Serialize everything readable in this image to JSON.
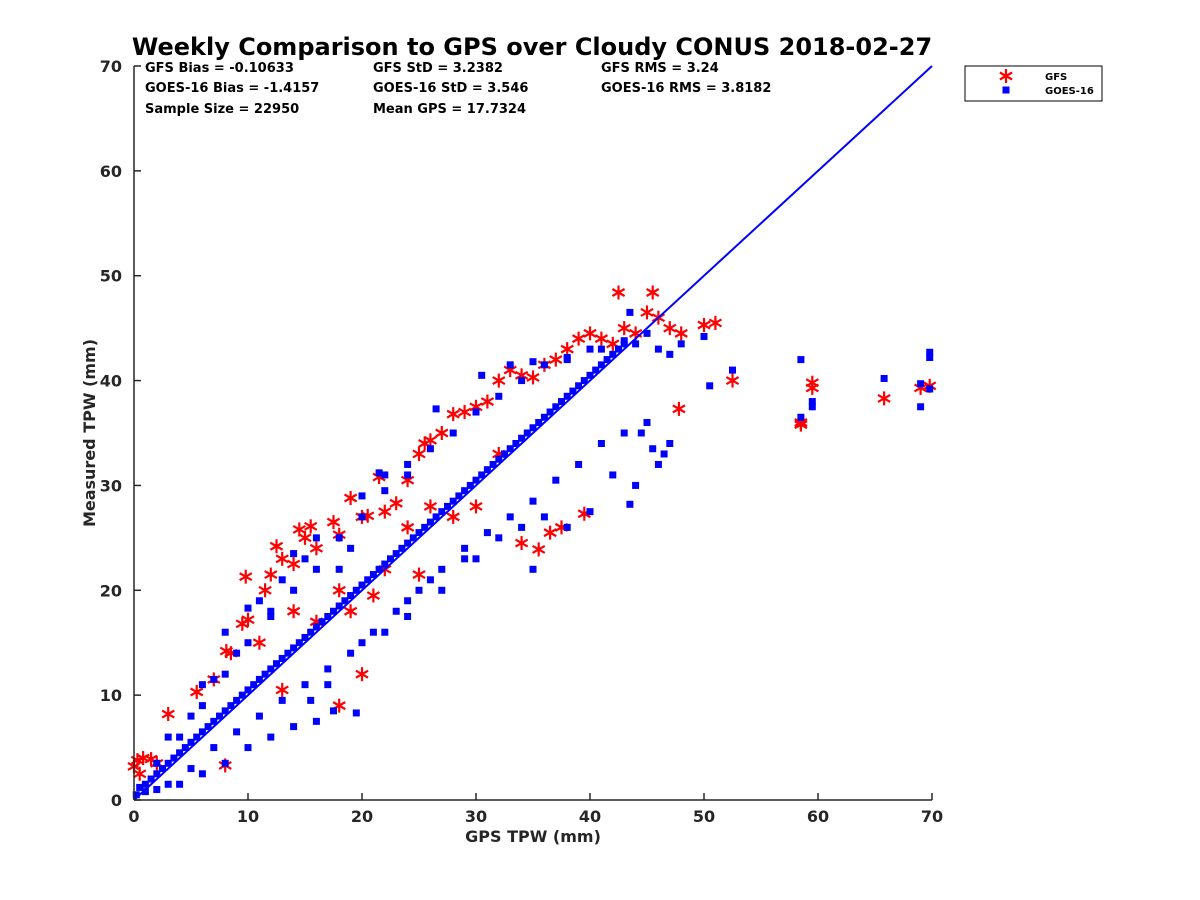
{
  "chart_data": {
    "type": "scatter",
    "title": "Weekly Comparison to GPS over Cloudy CONUS 2018-02-27",
    "xlabel": "GPS TPW (mm)",
    "ylabel": "Measured TPW (mm)",
    "xlim": [
      0,
      70
    ],
    "ylim": [
      0,
      70
    ],
    "xticks": [
      "0",
      "10",
      "20",
      "30",
      "40",
      "50",
      "60",
      "70"
    ],
    "yticks": [
      "0",
      "10",
      "20",
      "30",
      "40",
      "50",
      "60",
      "70"
    ],
    "grid": false,
    "legend_position": "outside-top-right",
    "stats": [
      [
        "GFS Bias = -0.10633",
        "GFS StD = 3.2382",
        "GFS RMS = 3.24"
      ],
      [
        "GOES-16 Bias = -1.4157",
        "GOES-16 StD = 3.546",
        "GOES-16 RMS = 3.8182"
      ],
      [
        "Sample Size = 22950",
        "Mean GPS = 17.7324"
      ]
    ],
    "reference_line": {
      "x": [
        0,
        70
      ],
      "y": [
        0,
        70
      ],
      "color": "#0000ff"
    },
    "series": [
      {
        "name": "GFS",
        "marker": "asterisk",
        "color": "#ff0000",
        "points": [
          [
            0,
            3.2
          ],
          [
            0.3,
            3.8
          ],
          [
            0.8,
            4
          ],
          [
            1.5,
            3.9
          ],
          [
            2,
            3.5
          ],
          [
            0.5,
            2.5
          ],
          [
            3,
            8.2
          ],
          [
            5.5,
            10.3
          ],
          [
            7,
            11.5
          ],
          [
            8.1,
            14.2
          ],
          [
            9.5,
            16.8
          ],
          [
            9.8,
            21.3
          ],
          [
            10,
            17.2
          ],
          [
            11.5,
            20
          ],
          [
            12,
            21.5
          ],
          [
            12.5,
            24.2
          ],
          [
            13,
            23
          ],
          [
            14,
            22.5
          ],
          [
            14.5,
            25.8
          ],
          [
            15,
            25
          ],
          [
            15.5,
            26.1
          ],
          [
            16,
            24
          ],
          [
            17.5,
            26.5
          ],
          [
            18,
            25.3
          ],
          [
            19,
            28.8
          ],
          [
            20,
            27
          ],
          [
            20.5,
            27.1
          ],
          [
            21.5,
            30.8
          ],
          [
            22,
            27.5
          ],
          [
            23,
            28.3
          ],
          [
            24,
            30.5
          ],
          [
            25,
            33
          ],
          [
            25.5,
            34
          ],
          [
            26,
            34.3
          ],
          [
            27,
            35
          ],
          [
            28,
            36.8
          ],
          [
            29,
            37
          ],
          [
            30,
            37.5
          ],
          [
            31,
            38
          ],
          [
            32,
            40
          ],
          [
            33,
            41
          ],
          [
            34,
            40.5
          ],
          [
            35,
            40.3
          ],
          [
            36,
            41.5
          ],
          [
            37,
            42
          ],
          [
            38,
            43
          ],
          [
            39,
            44
          ],
          [
            40,
            44.5
          ],
          [
            41,
            44
          ],
          [
            42,
            43.5
          ],
          [
            43,
            45
          ],
          [
            44,
            44.5
          ],
          [
            45,
            46.5
          ],
          [
            46,
            46
          ],
          [
            47,
            45
          ],
          [
            48,
            44.5
          ],
          [
            42.5,
            48.4
          ],
          [
            45.5,
            48.4
          ],
          [
            47.8,
            37.3
          ],
          [
            50,
            45.3
          ],
          [
            51,
            45.5
          ],
          [
            52.5,
            40
          ],
          [
            58.5,
            36
          ],
          [
            58.5,
            35.8
          ],
          [
            59.5,
            39.8
          ],
          [
            59.5,
            39.3
          ],
          [
            65.8,
            38.3
          ],
          [
            69,
            39.3
          ],
          [
            69.8,
            39.5
          ],
          [
            35.5,
            23.9
          ],
          [
            36.5,
            25.5
          ],
          [
            37.5,
            26
          ],
          [
            39.5,
            27.3
          ],
          [
            34,
            24.5
          ],
          [
            25,
            21.5
          ],
          [
            21,
            19.5
          ],
          [
            19,
            18
          ],
          [
            13,
            10.5
          ],
          [
            18,
            9
          ],
          [
            20,
            12
          ],
          [
            8,
            3.3
          ],
          [
            8.5,
            14
          ],
          [
            11,
            15
          ],
          [
            14,
            18
          ],
          [
            28,
            27
          ],
          [
            30,
            28
          ],
          [
            32,
            33
          ],
          [
            24,
            26
          ],
          [
            22,
            22
          ],
          [
            26,
            28
          ],
          [
            18,
            20
          ],
          [
            16,
            17
          ]
        ]
      },
      {
        "name": "GOES-16",
        "marker": "square",
        "color": "#0000ff",
        "points": [
          [
            0.2,
            0.5
          ],
          [
            0.5,
            1.2
          ],
          [
            1,
            1.5
          ],
          [
            1.5,
            2
          ],
          [
            2,
            2.5
          ],
          [
            2.5,
            3
          ],
          [
            3,
            3.5
          ],
          [
            3.5,
            4
          ],
          [
            4,
            4.5
          ],
          [
            4.5,
            5
          ],
          [
            5,
            5.5
          ],
          [
            5.5,
            6
          ],
          [
            6,
            6.5
          ],
          [
            6.5,
            7
          ],
          [
            7,
            7.5
          ],
          [
            7.5,
            8
          ],
          [
            8,
            8.5
          ],
          [
            8.5,
            9
          ],
          [
            9,
            9.5
          ],
          [
            9.5,
            10
          ],
          [
            10,
            10.5
          ],
          [
            10.5,
            11
          ],
          [
            11,
            11.5
          ],
          [
            11.5,
            12
          ],
          [
            12,
            12.5
          ],
          [
            12.5,
            13
          ],
          [
            13,
            13.5
          ],
          [
            13.5,
            14
          ],
          [
            14,
            14.5
          ],
          [
            14.5,
            15
          ],
          [
            15,
            15.5
          ],
          [
            15.5,
            16
          ],
          [
            16,
            16.5
          ],
          [
            16.5,
            17
          ],
          [
            17,
            17.5
          ],
          [
            17.5,
            18
          ],
          [
            18,
            18.5
          ],
          [
            18.5,
            19
          ],
          [
            19,
            19.5
          ],
          [
            19.5,
            20
          ],
          [
            20,
            20.5
          ],
          [
            20.5,
            21
          ],
          [
            21,
            21.5
          ],
          [
            21.5,
            22
          ],
          [
            22,
            22.5
          ],
          [
            22.5,
            23
          ],
          [
            23,
            23.5
          ],
          [
            23.5,
            24
          ],
          [
            24,
            24.5
          ],
          [
            24.5,
            25
          ],
          [
            25,
            25.5
          ],
          [
            25.5,
            26
          ],
          [
            26,
            26.5
          ],
          [
            26.5,
            27
          ],
          [
            27,
            27.5
          ],
          [
            27.5,
            28
          ],
          [
            28,
            28.5
          ],
          [
            28.5,
            29
          ],
          [
            29,
            29.5
          ],
          [
            29.5,
            30
          ],
          [
            30,
            30.5
          ],
          [
            30.5,
            31
          ],
          [
            31,
            31.5
          ],
          [
            31.5,
            32
          ],
          [
            32,
            32.5
          ],
          [
            32.5,
            33
          ],
          [
            33,
            33.5
          ],
          [
            33.5,
            34
          ],
          [
            34,
            34.5
          ],
          [
            34.5,
            35
          ],
          [
            35,
            35.5
          ],
          [
            35.5,
            36
          ],
          [
            36,
            36.5
          ],
          [
            36.5,
            37
          ],
          [
            37,
            37.5
          ],
          [
            37.5,
            38
          ],
          [
            38,
            38.5
          ],
          [
            38.5,
            39
          ],
          [
            39,
            39.5
          ],
          [
            39.5,
            40
          ],
          [
            40,
            40.5
          ],
          [
            40.5,
            41
          ],
          [
            41,
            41.5
          ],
          [
            41.5,
            42
          ],
          [
            42,
            42.5
          ],
          [
            42.5,
            43
          ],
          [
            43,
            43.5
          ],
          [
            3,
            1.5
          ],
          [
            5,
            3
          ],
          [
            7,
            5
          ],
          [
            9,
            6.5
          ],
          [
            11,
            8
          ],
          [
            13,
            9.5
          ],
          [
            15,
            11
          ],
          [
            17,
            12.5
          ],
          [
            19,
            14
          ],
          [
            21,
            16
          ],
          [
            23,
            18
          ],
          [
            25,
            20
          ],
          [
            27,
            22
          ],
          [
            29,
            24
          ],
          [
            31,
            25.5
          ],
          [
            33,
            27
          ],
          [
            35,
            28.5
          ],
          [
            37,
            30.5
          ],
          [
            39,
            32
          ],
          [
            41,
            34
          ],
          [
            43,
            35
          ],
          [
            45,
            36
          ],
          [
            2,
            3.5
          ],
          [
            4,
            6
          ],
          [
            6,
            9
          ],
          [
            8,
            12
          ],
          [
            10,
            15
          ],
          [
            12,
            17.5
          ],
          [
            14,
            20
          ],
          [
            16,
            22
          ],
          [
            18,
            25
          ],
          [
            20,
            27
          ],
          [
            22,
            29.5
          ],
          [
            24,
            31
          ],
          [
            26,
            33.5
          ],
          [
            28,
            35
          ],
          [
            30,
            37
          ],
          [
            32,
            38.5
          ],
          [
            34,
            40
          ],
          [
            36,
            41.5
          ],
          [
            38,
            42
          ],
          [
            40,
            43
          ],
          [
            44,
            43.5
          ],
          [
            45,
            44.5
          ],
          [
            46,
            43
          ],
          [
            47,
            42.5
          ],
          [
            48,
            43.5
          ],
          [
            43.5,
            28.2
          ],
          [
            44.5,
            35
          ],
          [
            45.5,
            33.5
          ],
          [
            46.5,
            33
          ],
          [
            47,
            34
          ],
          [
            35,
            22
          ],
          [
            38,
            26
          ],
          [
            40,
            27.5
          ],
          [
            29,
            23
          ],
          [
            26,
            21
          ],
          [
            24,
            19
          ],
          [
            20,
            15
          ],
          [
            17,
            11
          ],
          [
            15.5,
            9.5
          ],
          [
            16,
            7.5
          ],
          [
            17.5,
            8.5
          ],
          [
            19.5,
            8.3
          ],
          [
            14,
            7
          ],
          [
            12,
            6
          ],
          [
            10,
            5
          ],
          [
            8,
            3.5
          ],
          [
            6,
            2.5
          ],
          [
            4,
            1.5
          ],
          [
            2,
            1
          ],
          [
            1,
            0.8
          ],
          [
            22,
            16
          ],
          [
            24,
            17.5
          ],
          [
            27,
            20
          ],
          [
            30,
            23
          ],
          [
            32,
            25
          ],
          [
            34,
            26
          ],
          [
            36,
            27
          ],
          [
            42,
            31
          ],
          [
            44,
            30
          ],
          [
            46,
            32
          ],
          [
            21.5,
            31.2
          ],
          [
            24,
            32
          ],
          [
            26.5,
            37.3
          ],
          [
            30.5,
            40.5
          ],
          [
            33,
            41.5
          ],
          [
            35,
            41.8
          ],
          [
            38,
            42.2
          ],
          [
            41,
            43
          ],
          [
            43,
            43.8
          ],
          [
            43.5,
            46.5
          ],
          [
            50,
            44.2
          ],
          [
            50.5,
            39.5
          ],
          [
            52.5,
            41
          ],
          [
            58.5,
            42
          ],
          [
            58.5,
            36.5
          ],
          [
            59.5,
            38
          ],
          [
            59.5,
            37.5
          ],
          [
            65.8,
            40.2
          ],
          [
            69,
            37.5
          ],
          [
            69,
            39.7
          ],
          [
            69.8,
            42.2
          ],
          [
            69.8,
            42.7
          ],
          [
            69.8,
            39.2
          ],
          [
            18,
            22
          ],
          [
            19,
            24
          ],
          [
            12,
            18
          ],
          [
            10,
            18.3
          ],
          [
            11,
            19
          ],
          [
            13,
            21
          ],
          [
            15,
            23
          ],
          [
            5,
            8
          ],
          [
            3,
            6
          ],
          [
            6,
            11
          ],
          [
            7,
            11.5
          ],
          [
            9,
            14
          ],
          [
            8,
            16
          ],
          [
            14,
            23.5
          ],
          [
            16,
            25
          ],
          [
            20,
            29
          ],
          [
            22,
            31
          ]
        ]
      }
    ]
  }
}
